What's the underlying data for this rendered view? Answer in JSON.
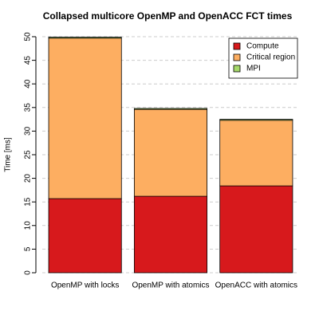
{
  "chart_data": {
    "type": "stacked_bar",
    "title": "Collapsed multicore OpenMP and OpenACC FCT times",
    "y_label": "Time [ms]",
    "categories": [
      "OpenMP with locks",
      "OpenMP with atomics",
      "OpenACC with atomics"
    ],
    "series": [
      {
        "name": "Compute",
        "color": "#d7191c",
        "values": [
          15.7,
          16.2,
          18.4
        ]
      },
      {
        "name": "Critical region",
        "color": "#fdae61",
        "values": [
          34.0,
          18.4,
          13.9
        ]
      },
      {
        "name": "MPI",
        "color": "#a6d96a",
        "values": [
          0.2,
          0.2,
          0.2
        ]
      }
    ],
    "ylim": [
      0,
      50
    ],
    "yticks": [
      0,
      5,
      10,
      15,
      20,
      25,
      30,
      35,
      40,
      45,
      50
    ],
    "grid": true,
    "legend": "top-right"
  }
}
